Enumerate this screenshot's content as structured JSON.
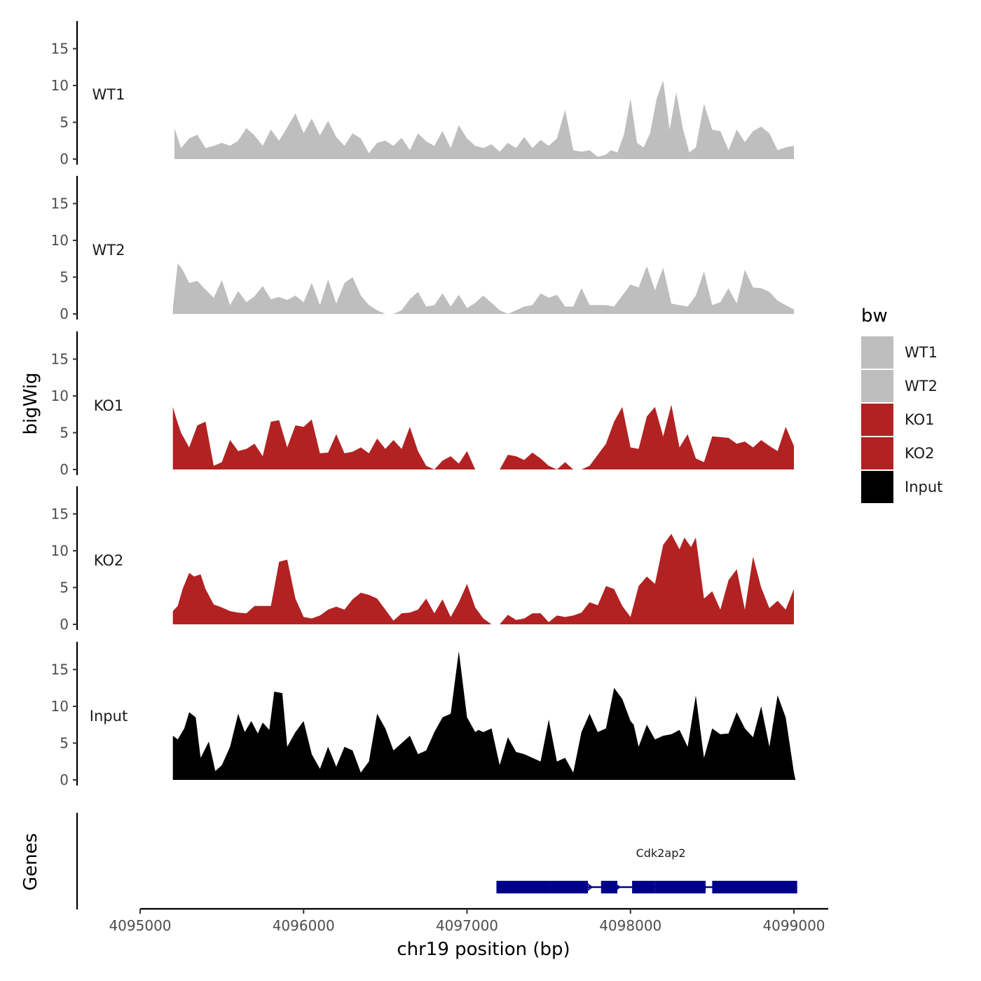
{
  "chart_data": {
    "type": "area",
    "chromosome": "chr19",
    "xlabel": "chr19 position (bp)",
    "ylabel": "bigWig",
    "xlim": [
      4094980,
      4099220
    ],
    "ylim": [
      0,
      19
    ],
    "x_ticks": [
      4095000,
      4096000,
      4097000,
      4098000,
      4099000
    ],
    "y_ticks": [
      0,
      5,
      10,
      15
    ],
    "legend": {
      "title": "bw",
      "position": "right",
      "entries": [
        {
          "label": "WT1",
          "color": "#bebebe"
        },
        {
          "label": "WT2",
          "color": "#bebebe"
        },
        {
          "label": "KO1",
          "color": "#b22222"
        },
        {
          "label": "KO2",
          "color": "#b22222"
        },
        {
          "label": "Input",
          "color": "#000000"
        }
      ]
    },
    "series": [
      {
        "name": "WT1",
        "color": "#bebebe",
        "x": [
          4095210,
          4095250,
          4095300,
          4095350,
          4095400,
          4095450,
          4095500,
          4095550,
          4095600,
          4095650,
          4095700,
          4095750,
          4095800,
          4095850,
          4095900,
          4095950,
          4096000,
          4096050,
          4096100,
          4096150,
          4096200,
          4096250,
          4096300,
          4096350,
          4096400,
          4096450,
          4096500,
          4096550,
          4096600,
          4096650,
          4096700,
          4096750,
          4096800,
          4096850,
          4096900,
          4096950,
          4097000,
          4097050,
          4097100,
          4097150,
          4097200,
          4097250,
          4097300,
          4097350,
          4097400,
          4097450,
          4097500,
          4097550,
          4097600,
          4097650,
          4097700,
          4097750,
          4097800,
          4097850,
          4097880,
          4097920,
          4097960,
          4098000,
          4098040,
          4098080,
          4098120,
          4098160,
          4098200,
          4098240,
          4098280,
          4098320,
          4098360,
          4098400,
          4098450,
          4098500,
          4098550,
          4098600,
          4098650,
          4098700,
          4098750,
          4098800,
          4098850,
          4098900,
          4098950,
          4099000
        ],
        "values": [
          4.2,
          1.5,
          2.8,
          3.3,
          1.5,
          1.8,
          2.2,
          1.8,
          2.5,
          4.2,
          3.2,
          1.8,
          4.0,
          2.5,
          4.3,
          6.2,
          3.5,
          5.5,
          3.2,
          5.2,
          3.0,
          1.8,
          3.5,
          2.8,
          0.8,
          2.2,
          2.5,
          1.8,
          2.9,
          1.2,
          3.5,
          2.4,
          1.8,
          3.8,
          1.5,
          4.6,
          2.8,
          1.8,
          1.5,
          2.0,
          1.0,
          2.2,
          1.5,
          3.0,
          1.5,
          2.6,
          1.8,
          2.8,
          6.7,
          1.2,
          1.0,
          1.2,
          0.3,
          0.6,
          1.2,
          0.9,
          3.3,
          8.2,
          2.2,
          1.6,
          3.5,
          8.2,
          10.7,
          4.0,
          9.1,
          4.2,
          0.9,
          1.6,
          7.5,
          4.0,
          3.8,
          1.2,
          4.0,
          2.3,
          3.8,
          4.4,
          3.5,
          1.2,
          1.6,
          1.8
        ]
      },
      {
        "name": "WT2",
        "color": "#bebebe",
        "x": [
          4095200,
          4095230,
          4095260,
          4095300,
          4095350,
          4095400,
          4095450,
          4095500,
          4095550,
          4095600,
          4095650,
          4095700,
          4095750,
          4095800,
          4095850,
          4095900,
          4095950,
          4096000,
          4096050,
          4096100,
          4096150,
          4096200,
          4096250,
          4096300,
          4096350,
          4096400,
          4096450,
          4096500,
          4096550,
          4096600,
          4096650,
          4096700,
          4096750,
          4096800,
          4096850,
          4096900,
          4096950,
          4097000,
          4097050,
          4097100,
          4097150,
          4097200,
          4097250,
          4097300,
          4097350,
          4097400,
          4097450,
          4097500,
          4097550,
          4097600,
          4097650,
          4097700,
          4097750,
          4097800,
          4097850,
          4097900,
          4097950,
          4098000,
          4098050,
          4098100,
          4098150,
          4098200,
          4098250,
          4098300,
          4098350,
          4098400,
          4098450,
          4098500,
          4098550,
          4098600,
          4098650,
          4098700,
          4098750,
          4098800,
          4098850,
          4098900,
          4098950,
          4099000
        ],
        "values": [
          0.8,
          6.9,
          6.0,
          4.2,
          4.5,
          3.3,
          2.2,
          4.6,
          1.2,
          3.1,
          1.6,
          2.4,
          3.8,
          2.0,
          2.3,
          1.9,
          2.5,
          1.6,
          4.2,
          1.2,
          4.7,
          1.4,
          4.2,
          5.0,
          2.5,
          1.2,
          0.5,
          0.0,
          0.0,
          0.5,
          2.0,
          3.0,
          1.0,
          1.2,
          2.8,
          1.0,
          2.6,
          0.8,
          1.5,
          2.5,
          1.5,
          0.5,
          0.0,
          0.5,
          1.0,
          1.2,
          2.8,
          2.2,
          2.6,
          1.0,
          1.0,
          3.5,
          1.2,
          1.2,
          1.2,
          1.0,
          2.5,
          4.0,
          3.6,
          6.5,
          3.2,
          6.3,
          1.4,
          1.2,
          1.0,
          2.5,
          5.8,
          1.2,
          1.6,
          3.5,
          1.4,
          6.0,
          3.6,
          3.5,
          3.0,
          1.8,
          1.2,
          0.6
        ]
      },
      {
        "name": "KO1",
        "color": "#b22222",
        "x": [
          4095200,
          4095220,
          4095250,
          4095300,
          4095350,
          4095400,
          4095450,
          4095500,
          4095550,
          4095600,
          4095650,
          4095700,
          4095750,
          4095800,
          4095850,
          4095900,
          4095950,
          4096000,
          4096050,
          4096100,
          4096150,
          4096200,
          4096250,
          4096300,
          4096350,
          4096400,
          4096450,
          4096500,
          4096550,
          4096600,
          4096650,
          4096700,
          4096750,
          4096800,
          4096850,
          4096900,
          4096950,
          4097000,
          4097050,
          4097100,
          4097150,
          4097200,
          4097250,
          4097300,
          4097350,
          4097400,
          4097450,
          4097500,
          4097550,
          4097600,
          4097650,
          4097700,
          4097750,
          4097800,
          4097850,
          4097900,
          4097950,
          4098000,
          4098050,
          4098100,
          4098150,
          4098200,
          4098250,
          4098300,
          4098350,
          4098400,
          4098450,
          4098500,
          4098550,
          4098600,
          4098650,
          4098700,
          4098750,
          4098800,
          4098850,
          4098900,
          4098950,
          4099000
        ],
        "values": [
          8.5,
          7.0,
          5.0,
          3.0,
          6.0,
          6.5,
          0.5,
          1.0,
          4.0,
          2.5,
          2.8,
          3.5,
          1.8,
          6.5,
          6.7,
          3.0,
          6.0,
          5.8,
          6.8,
          2.2,
          2.3,
          4.8,
          2.2,
          2.4,
          3.0,
          2.2,
          4.2,
          2.8,
          4.0,
          2.8,
          5.8,
          2.5,
          0.5,
          0.0,
          1.2,
          1.8,
          0.8,
          2.5,
          0.0,
          0.0,
          0.0,
          0.0,
          2.0,
          1.8,
          1.3,
          2.3,
          1.5,
          0.5,
          0.0,
          1.0,
          0.0,
          0.0,
          0.5,
          2.0,
          3.5,
          6.5,
          8.5,
          3.0,
          2.8,
          7.2,
          8.5,
          4.5,
          8.8,
          3.0,
          4.8,
          1.5,
          1.0,
          4.5,
          4.4,
          4.3,
          3.5,
          3.8,
          3.0,
          4.0,
          3.2,
          2.5,
          5.8,
          3.2
        ]
      },
      {
        "name": "KO2",
        "color": "#b22222",
        "x": [
          4095200,
          4095230,
          4095260,
          4095300,
          4095330,
          4095370,
          4095400,
          4095450,
          4095500,
          4095550,
          4095600,
          4095650,
          4095700,
          4095750,
          4095800,
          4095850,
          4095900,
          4095950,
          4096000,
          4096050,
          4096100,
          4096150,
          4096200,
          4096250,
          4096300,
          4096350,
          4096400,
          4096450,
          4096500,
          4096550,
          4096600,
          4096650,
          4096700,
          4096750,
          4096800,
          4096850,
          4096900,
          4096950,
          4097000,
          4097050,
          4097100,
          4097150,
          4097200,
          4097250,
          4097300,
          4097350,
          4097400,
          4097450,
          4097500,
          4097550,
          4097600,
          4097650,
          4097700,
          4097750,
          4097800,
          4097850,
          4097900,
          4097950,
          4098000,
          4098050,
          4098100,
          4098150,
          4098200,
          4098250,
          4098300,
          4098330,
          4098370,
          4098400,
          4098450,
          4098500,
          4098550,
          4098600,
          4098650,
          4098700,
          4098750,
          4098800,
          4098850,
          4098900,
          4098950,
          4099000
        ],
        "values": [
          1.8,
          2.5,
          4.8,
          7.0,
          6.5,
          6.8,
          4.8,
          2.7,
          2.3,
          1.8,
          1.6,
          1.5,
          2.5,
          2.5,
          2.5,
          8.5,
          8.8,
          3.5,
          1.0,
          0.8,
          1.2,
          2.0,
          2.4,
          2.0,
          3.4,
          4.3,
          4.0,
          3.5,
          2.0,
          0.5,
          1.5,
          1.6,
          2.0,
          3.5,
          1.5,
          3.4,
          1.0,
          3.0,
          5.5,
          2.3,
          0.8,
          0.0,
          0.0,
          1.3,
          0.6,
          0.8,
          1.5,
          1.5,
          0.3,
          1.2,
          1.0,
          1.2,
          1.6,
          3.0,
          2.6,
          5.2,
          4.8,
          2.5,
          1.0,
          5.2,
          6.5,
          5.5,
          10.8,
          12.3,
          10.2,
          11.8,
          10.5,
          11.8,
          3.5,
          4.5,
          2.0,
          6.0,
          7.5,
          2.0,
          9.2,
          5.0,
          2.2,
          3.2,
          2.0,
          4.8
        ]
      },
      {
        "name": "Input",
        "color": "#000000",
        "x": [
          4095200,
          4095230,
          4095270,
          4095300,
          4095340,
          4095370,
          4095420,
          4095460,
          4095500,
          4095550,
          4095600,
          4095640,
          4095680,
          4095720,
          4095750,
          4095790,
          4095820,
          4095870,
          4095900,
          4095950,
          4096000,
          4096050,
          4096100,
          4096150,
          4096200,
          4096250,
          4096300,
          4096350,
          4096400,
          4096450,
          4096500,
          4096550,
          4096600,
          4096650,
          4096700,
          4096750,
          4096800,
          4096850,
          4096900,
          4096950,
          4097000,
          4097050,
          4097070,
          4097100,
          4097150,
          4097200,
          4097250,
          4097300,
          4097350,
          4097400,
          4097450,
          4097500,
          4097550,
          4097600,
          4097650,
          4097700,
          4097750,
          4097800,
          4097850,
          4097900,
          4097950,
          4098000,
          4098020,
          4098050,
          4098100,
          4098150,
          4098200,
          4098250,
          4098300,
          4098350,
          4098400,
          4098450,
          4098500,
          4098550,
          4098600,
          4098650,
          4098700,
          4098750,
          4098800,
          4098850,
          4098900,
          4098950,
          4099000,
          4099010
        ],
        "values": [
          6.0,
          5.5,
          7.0,
          9.2,
          8.5,
          3.0,
          5.2,
          1.2,
          2.0,
          4.5,
          9.0,
          6.5,
          8.0,
          6.3,
          7.8,
          6.8,
          12.0,
          11.8,
          4.5,
          6.5,
          8.0,
          3.5,
          1.5,
          4.5,
          1.8,
          4.5,
          4.0,
          1.0,
          2.5,
          9.0,
          7.0,
          4.0,
          5.0,
          6.0,
          3.5,
          4.0,
          6.5,
          8.5,
          9.0,
          17.5,
          8.5,
          6.5,
          6.8,
          6.5,
          7.0,
          2.0,
          5.8,
          3.8,
          3.5,
          3.0,
          2.5,
          8.2,
          2.5,
          3.0,
          1.0,
          6.5,
          9.0,
          6.5,
          7.0,
          12.5,
          11.0,
          8.0,
          7.5,
          4.5,
          7.5,
          5.5,
          6.0,
          6.2,
          6.8,
          4.5,
          11.5,
          3.0,
          7.0,
          6.2,
          6.3,
          9.2,
          7.0,
          5.8,
          10.0,
          4.5,
          11.5,
          8.5,
          1.0,
          0.0
        ]
      }
    ],
    "genes_track": {
      "ylabel": "Genes",
      "genes": [
        {
          "name": "Cdk2ap2",
          "start": 4097180,
          "end": 4099020,
          "strand": "+",
          "exons": [
            {
              "start": 4097180,
              "end": 4097390
            },
            {
              "start": 4097390,
              "end": 4097510
            },
            {
              "start": 4097510,
              "end": 4097740
            },
            {
              "start": 4097820,
              "end": 4097920
            },
            {
              "start": 4098010,
              "end": 4098150
            },
            {
              "start": 4098150,
              "end": 4098460
            },
            {
              "start": 4098500,
              "end": 4099020
            }
          ]
        }
      ]
    }
  }
}
